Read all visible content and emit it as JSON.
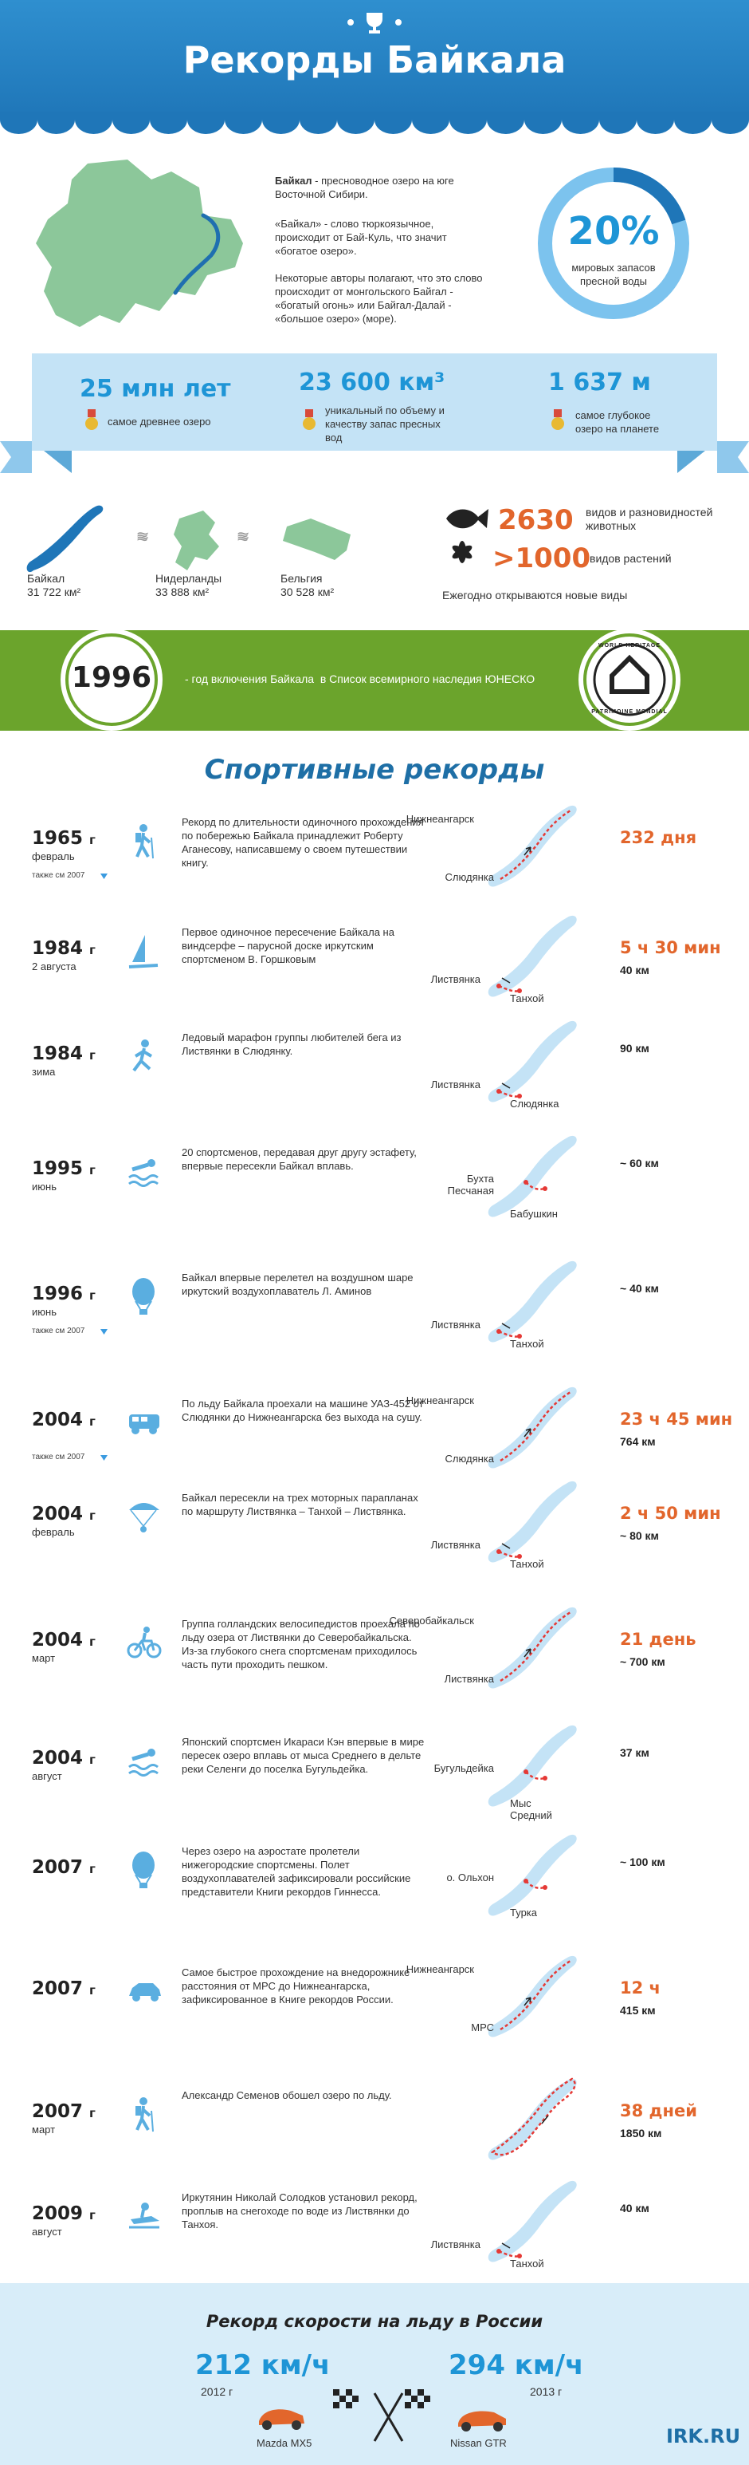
{
  "header": {
    "title": "Рекорды Байкала"
  },
  "intro": {
    "lead_bold": "Байкал",
    "lead_text": " - пресноводное озеро на юге Восточной Сибири.",
    "paragraphs": [
      "«Байкал» - слово тюркоязычное, происходит от Бай-Куль, что значит «богатое озеро».",
      "Некоторые авторы полагают, что это слово происходит от монгольского Байгал - «богатый огонь» или Байгал-Далай - «большое озеро» (море)."
    ],
    "share": {
      "value": "20%",
      "label": "мировых запасов пресной воды"
    }
  },
  "stats": [
    {
      "value": "25 млн лет",
      "label": "самое древнее озеро"
    },
    {
      "value": "23 600 км³",
      "label": "уникальный по объему и качеству запас пресных вод"
    },
    {
      "value": "1 637 м",
      "label": "самое глубокое озеро на планете"
    }
  ],
  "comparison": {
    "areas": [
      {
        "name": "Байкал",
        "area": "31 722 км²"
      },
      {
        "name": "Нидерланды",
        "area": "33 888 км²"
      },
      {
        "name": "Бельгия",
        "area": "30 528 км²"
      }
    ],
    "approx": "≈",
    "species": [
      {
        "value": "2630",
        "label": "видов и разновидностей животных"
      },
      {
        "value": ">1000",
        "label": "видов растений"
      }
    ],
    "new_species": "Ежегодно открываются новые виды"
  },
  "unesco": {
    "year": "1996",
    "text": "- год включения Байкала  в Список всемирного наследия ЮНЕСКО",
    "emblem_top": "WORLD HERITAGE",
    "emblem_bottom": "PATRIMOINE MONDIAL"
  },
  "sports": {
    "title": "Спортивные рекорды",
    "records": [
      {
        "year": "1965",
        "unit": "г",
        "date": "февраль",
        "note": "также см 2007",
        "description": "Рекорд по длительности одиночного прохождения по побережью Байкала принадлежит Роберту Аганесову, написавшему о своем путешествии книгу.",
        "places": [
          "Нижнеангарск",
          "Слюдянка"
        ],
        "highlight": "232 дня"
      },
      {
        "year": "1984",
        "unit": "г",
        "date": "2 августа",
        "description": "Первое одиночное пересечение Байкала на виндсерфе – парусной доске иркутским спортсменом В. Горшковым",
        "places": [
          "Листвянка",
          "Танхой"
        ],
        "highlight": "5 ч 30 мин",
        "distance": "40 км"
      },
      {
        "year": "1984",
        "unit": "г",
        "date": "зима",
        "description": "Ледовый марафон группы любителей бега  из Листвянки в Слюдянку.",
        "places": [
          "Листвянка",
          "Слюдянка"
        ],
        "distance": "90 км"
      },
      {
        "year": "1995",
        "unit": "г",
        "date": "июнь",
        "description": "20 спортсменов, передавая друг другу эстафету, впервые пересекли Байкал вплавь.",
        "places": [
          "Бухта Песчаная",
          "Бабушкин"
        ],
        "distance": "~ 60 км"
      },
      {
        "year": "1996",
        "unit": "г",
        "date": "июнь",
        "note": "также см 2007",
        "description": "Байкал впервые перелетел на воздушном шаре иркутский воздухоплаватель Л. Аминов",
        "places": [
          "Листвянка",
          "Танхой"
        ],
        "distance": "~ 40 км"
      },
      {
        "year": "2004",
        "unit": "г",
        "note": "также см 2007",
        "description": "По льду Байкала проехали на машине УАЗ-452 от Слюдянки до Нижнеангарска без выхода на сушу.",
        "places": [
          "Нижнеангарск",
          "Слюдянка"
        ],
        "highlight": "23 ч 45 мин",
        "distance": "764 км"
      },
      {
        "year": "2004",
        "unit": "г",
        "date": "февраль",
        "description": "Байкал пересекли на трех моторных парапланах по маршруту Листвянка – Танхой – Листвянка.",
        "places": [
          "Листвянка",
          "Танхой"
        ],
        "highlight": "2 ч 50 мин",
        "distance": "~ 80 км"
      },
      {
        "year": "2004",
        "unit": "г",
        "date": "март",
        "description": "Группа голландских велосипедистов проехала по льду озера от Листвянки до Северобайкальска. Из-за глубокого снега спортсменам приходилось часть пути проходить пешком.",
        "places": [
          "Северобайкальск",
          "Листвянка"
        ],
        "highlight": "21 день",
        "distance": "~ 700 км"
      },
      {
        "year": "2004",
        "unit": "г",
        "date": "август",
        "description": "Японский спортсмен Икараси Кэн впервые в мире пересек озеро вплавь от мыса Среднего в дельте реки Селенги до поселка Бугульдейка.",
        "places": [
          "Бугульдейка",
          "Мыс Средний"
        ],
        "distance": "37 км"
      },
      {
        "year": "2007",
        "unit": "г",
        "description": "Через озеро на аэростате пролетели нижегородские спортсмены. Полет воздухоплавателей зафиксировали российские представители Книги рекордов Гиннесса.",
        "places": [
          "о. Ольхон",
          "Турка"
        ],
        "distance": "~ 100 км"
      },
      {
        "year": "2007",
        "unit": "г",
        "description": "Самое быстрое прохождение на внедорожнике расстояния от МРС до Нижнеангарска, зафиксированное в Книге рекордов России.",
        "places": [
          "Нижнеангарск",
          "МРС"
        ],
        "highlight": "12 ч",
        "distance": "415 км"
      },
      {
        "year": "2007",
        "unit": "г",
        "date": "март",
        "description": "Александр Семенов обошел озеро по льду.",
        "places": [],
        "highlight": "38 дней",
        "distance": "1850 км"
      },
      {
        "year": "2009",
        "unit": "г",
        "date": "август",
        "description": "Иркутянин Николай Солодков установил рекорд, проплыв на снегоходе по воде из  Листвянки до Танхоя.",
        "places": [
          "Листвянка",
          "Танхой"
        ],
        "distance": "40 км"
      }
    ]
  },
  "speed": {
    "title": "Рекорд скорости на льду в России",
    "records": [
      {
        "value": "212 км/ч",
        "year": "2012 г",
        "car": "Mazda MX5"
      },
      {
        "value": "294 км/ч",
        "year": "2013 г",
        "car": "Nissan GTR"
      }
    ],
    "brand": "IRK.RU"
  }
}
